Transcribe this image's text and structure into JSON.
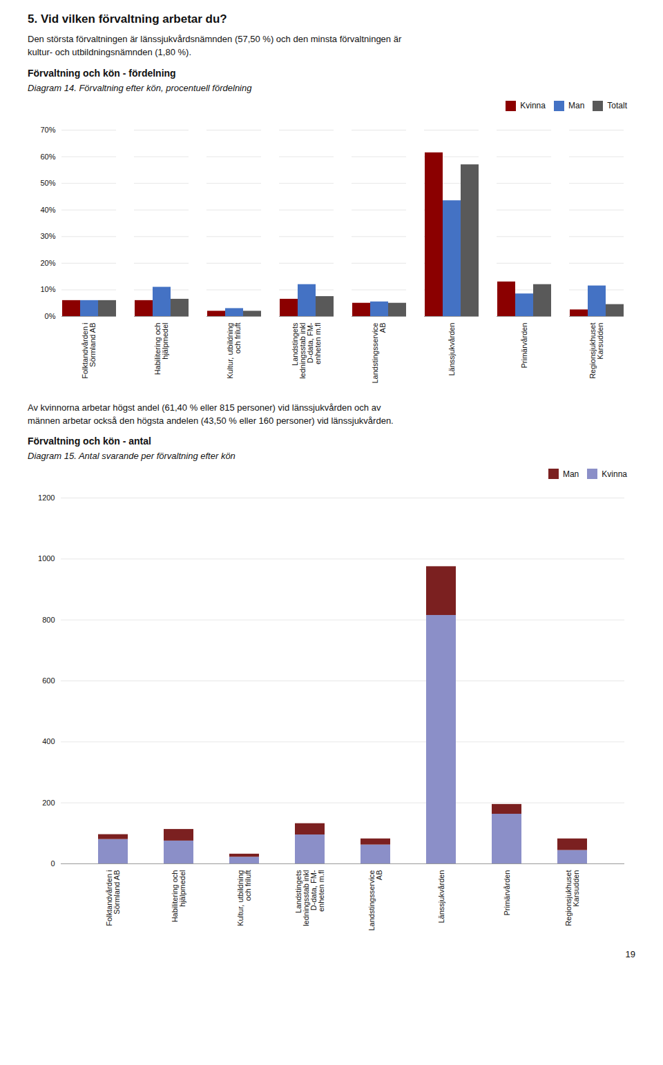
{
  "page_title": "5. Vid vilken förvaltning arbetar du?",
  "body_text": [
    "Den största förvaltningen är länssjukvårdsnämnden (57,50 %) och den minsta förvaltningen är",
    "kultur- och utbildningsnämnden (1,80 %)."
  ],
  "page_number": "19",
  "chart_data": [
    {
      "type": "bar",
      "heading": "Förvaltning och kön - fördelning",
      "title": "Diagram 14. Förvaltning efter kön, procentuell fördelning",
      "categories": [
        "Folktandvården i\nSörmland AB",
        "Habilitering och\nhjälpmedel",
        "Kultur, utbildning\noch friluft",
        "Landstingets\nledningsstab inkl\nD-data, FM-\nenheten m.fl",
        "Landstingsservice\nAB",
        "Länssjukvården",
        "Primärvården",
        "Regionsjukhuset\nKarsudden"
      ],
      "series": [
        {
          "name": "Kvinna",
          "color": "#8B0000",
          "values": [
            6.0,
            6.0,
            2.0,
            6.5,
            5.0,
            61.5,
            13.0,
            2.5
          ]
        },
        {
          "name": "Man",
          "color": "#4472C4",
          "values": [
            6.0,
            11.0,
            3.0,
            12.0,
            5.5,
            43.5,
            8.5,
            11.5
          ]
        },
        {
          "name": "Totalt",
          "color": "#595959",
          "values": [
            6.0,
            6.5,
            2.0,
            7.5,
            5.0,
            57.0,
            12.0,
            4.5
          ]
        }
      ],
      "ylim": [
        0,
        70
      ],
      "yticks": [
        {
          "value": 0,
          "label": "0%"
        },
        {
          "value": 10,
          "label": "10%"
        },
        {
          "value": 20,
          "label": "20%"
        },
        {
          "value": 30,
          "label": "30%"
        },
        {
          "value": 40,
          "label": "40%"
        },
        {
          "value": 50,
          "label": "50%"
        },
        {
          "value": 60,
          "label": "60%"
        },
        {
          "value": 70,
          "label": "70%"
        }
      ],
      "grid": true,
      "legend": "upper right"
    },
    {
      "type": "bar",
      "stacked": true,
      "text_before": [
        "Av kvinnorna arbetar högst andel (61,40 % eller 815 personer) vid länssjukvården och av",
        "männen arbetar också den högsta andelen (43,50 % eller 160 personer) vid länssjukvården."
      ],
      "heading": "Förvaltning och kön - antal",
      "title": "Diagram 15. Antal svarande per förvaltning efter kön",
      "categories": [
        "Folktandvården i\nSörmland AB",
        "Habilitering och\nhjälpmedel",
        "Kultur, utbildning\noch friluft",
        "Landstingets\nledningsstab inkl\nD-data, FM-\nenheten m.fl",
        "Landstingsservice\nAB",
        "Länssjukvården",
        "Primärvården",
        "Regionsjukhuset\nKarsudden"
      ],
      "series": [
        {
          "name": "Kvinna",
          "color": "#8B8FC8",
          "values": [
            80,
            75,
            22,
            95,
            62,
            815,
            163,
            44
          ]
        },
        {
          "name": "Man",
          "color": "#7B2020",
          "values": [
            16,
            38,
            10,
            37,
            20,
            160,
            32,
            38
          ]
        }
      ],
      "ylim": [
        0,
        1200
      ],
      "yticks": [
        0,
        200,
        400,
        600,
        800,
        1000,
        1200
      ],
      "grid": true,
      "legend": "upper right"
    }
  ]
}
